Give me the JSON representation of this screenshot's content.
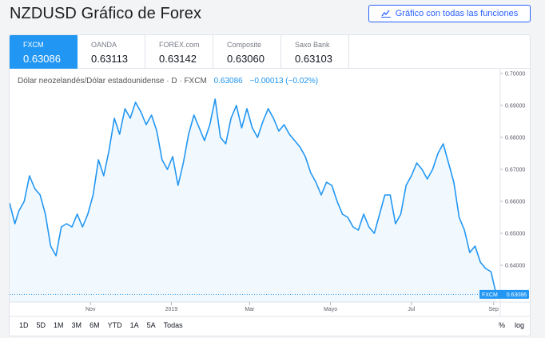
{
  "page": {
    "title": "NZDUSD Gráfico de Forex",
    "full_chart_button": "Gráfico con todas las funciones"
  },
  "tabs": [
    {
      "name": "FXCM",
      "price": "0.63086",
      "active": true
    },
    {
      "name": "OANDA",
      "price": "0.63113",
      "active": false
    },
    {
      "name": "FOREX.com",
      "price": "0.63142",
      "active": false
    },
    {
      "name": "Composite",
      "price": "0.63060",
      "active": false
    },
    {
      "name": "Saxo Bank",
      "price": "0.63103",
      "active": false
    }
  ],
  "legend": {
    "label": "Dólar neozelandés/Dólar estadounidense · D · FXCM",
    "value": "0.63086",
    "change": "−0.00013 (−0.02%)"
  },
  "price_tag": {
    "source": "FXCM",
    "value": "0.63086"
  },
  "range_buttons": [
    "1D",
    "5D",
    "1M",
    "3M",
    "6M",
    "YTD",
    "1A",
    "5A",
    "Todas"
  ],
  "scale_toggles": [
    "%",
    "log"
  ],
  "colors": {
    "line": "#2196f3",
    "accent": "#2962ff",
    "fill": "rgba(33,150,243,0.06)"
  },
  "chart_data": {
    "type": "area",
    "series": [
      {
        "x": [
          "2018-09-01",
          "2018-09-05",
          "2018-09-08",
          "2018-09-12",
          "2018-09-16",
          "2018-09-20",
          "2018-09-24",
          "2018-09-28",
          "2018-10-02",
          "2018-10-06",
          "2018-10-10",
          "2018-10-14",
          "2018-10-18",
          "2018-10-22",
          "2018-10-26",
          "2018-10-30",
          "2018-11-03",
          "2018-11-07",
          "2018-11-11",
          "2018-11-15",
          "2018-11-19",
          "2018-11-23",
          "2018-11-27",
          "2018-12-01",
          "2018-12-05",
          "2018-12-09",
          "2018-12-13",
          "2018-12-17",
          "2018-12-21",
          "2018-12-25",
          "2018-12-29",
          "2019-01-02",
          "2019-01-06",
          "2019-01-10",
          "2019-01-14",
          "2019-01-18",
          "2019-01-22",
          "2019-01-26",
          "2019-01-30",
          "2019-02-03",
          "2019-02-07",
          "2019-02-11",
          "2019-02-15",
          "2019-02-19",
          "2019-02-23",
          "2019-02-27",
          "2019-03-03",
          "2019-03-07",
          "2019-03-11",
          "2019-03-15",
          "2019-03-19",
          "2019-03-23",
          "2019-03-27",
          "2019-03-31",
          "2019-04-04",
          "2019-04-08",
          "2019-04-12",
          "2019-04-16",
          "2019-04-20",
          "2019-04-24",
          "2019-04-28",
          "2019-05-02",
          "2019-05-06",
          "2019-05-10",
          "2019-05-14",
          "2019-05-18",
          "2019-05-22",
          "2019-05-26",
          "2019-05-30",
          "2019-06-03",
          "2019-06-07",
          "2019-06-11",
          "2019-06-15",
          "2019-06-19",
          "2019-06-23",
          "2019-06-27",
          "2019-07-01",
          "2019-07-05",
          "2019-07-09",
          "2019-07-13",
          "2019-07-17",
          "2019-07-21",
          "2019-07-25",
          "2019-07-29",
          "2019-08-02",
          "2019-08-06",
          "2019-08-10",
          "2019-08-14",
          "2019-08-18",
          "2019-08-22",
          "2019-08-26",
          "2019-08-30",
          "2019-09-03"
        ],
        "y": [
          0.6595,
          0.653,
          0.657,
          0.66,
          0.668,
          0.664,
          0.662,
          0.656,
          0.646,
          0.643,
          0.652,
          0.653,
          0.652,
          0.656,
          0.652,
          0.656,
          0.662,
          0.673,
          0.668,
          0.676,
          0.686,
          0.681,
          0.689,
          0.686,
          0.691,
          0.688,
          0.684,
          0.687,
          0.682,
          0.673,
          0.67,
          0.674,
          0.665,
          0.672,
          0.681,
          0.687,
          0.683,
          0.679,
          0.684,
          0.692,
          0.68,
          0.678,
          0.686,
          0.69,
          0.683,
          0.689,
          0.683,
          0.68,
          0.685,
          0.689,
          0.686,
          0.682,
          0.684,
          0.681,
          0.679,
          0.677,
          0.674,
          0.669,
          0.666,
          0.662,
          0.666,
          0.665,
          0.66,
          0.656,
          0.655,
          0.652,
          0.651,
          0.656,
          0.652,
          0.65,
          0.656,
          0.662,
          0.662,
          0.653,
          0.656,
          0.665,
          0.668,
          0.672,
          0.67,
          0.667,
          0.67,
          0.675,
          0.678,
          0.672,
          0.666,
          0.655,
          0.651,
          0.644,
          0.646,
          0.641,
          0.639,
          0.638,
          0.6309
        ]
      }
    ],
    "x_ticks": [
      {
        "x": "2018-11-01",
        "label": "Nov"
      },
      {
        "x": "2019-01-01",
        "label": "2019"
      },
      {
        "x": "2019-03-01",
        "label": "Mar"
      },
      {
        "x": "2019-05-01",
        "label": "Mayo"
      },
      {
        "x": "2019-07-01",
        "label": "Jul"
      },
      {
        "x": "2019-09-01",
        "label": "Sep"
      }
    ],
    "y_ticks": [
      "0.70000",
      "0.69000",
      "0.68000",
      "0.67000",
      "0.66000",
      "0.65000",
      "0.64000"
    ],
    "ylim": [
      0.6285,
      0.7015
    ],
    "xlim": [
      "2018-09-01",
      "2019-09-06"
    ],
    "grid": false,
    "last_value_line": true
  }
}
